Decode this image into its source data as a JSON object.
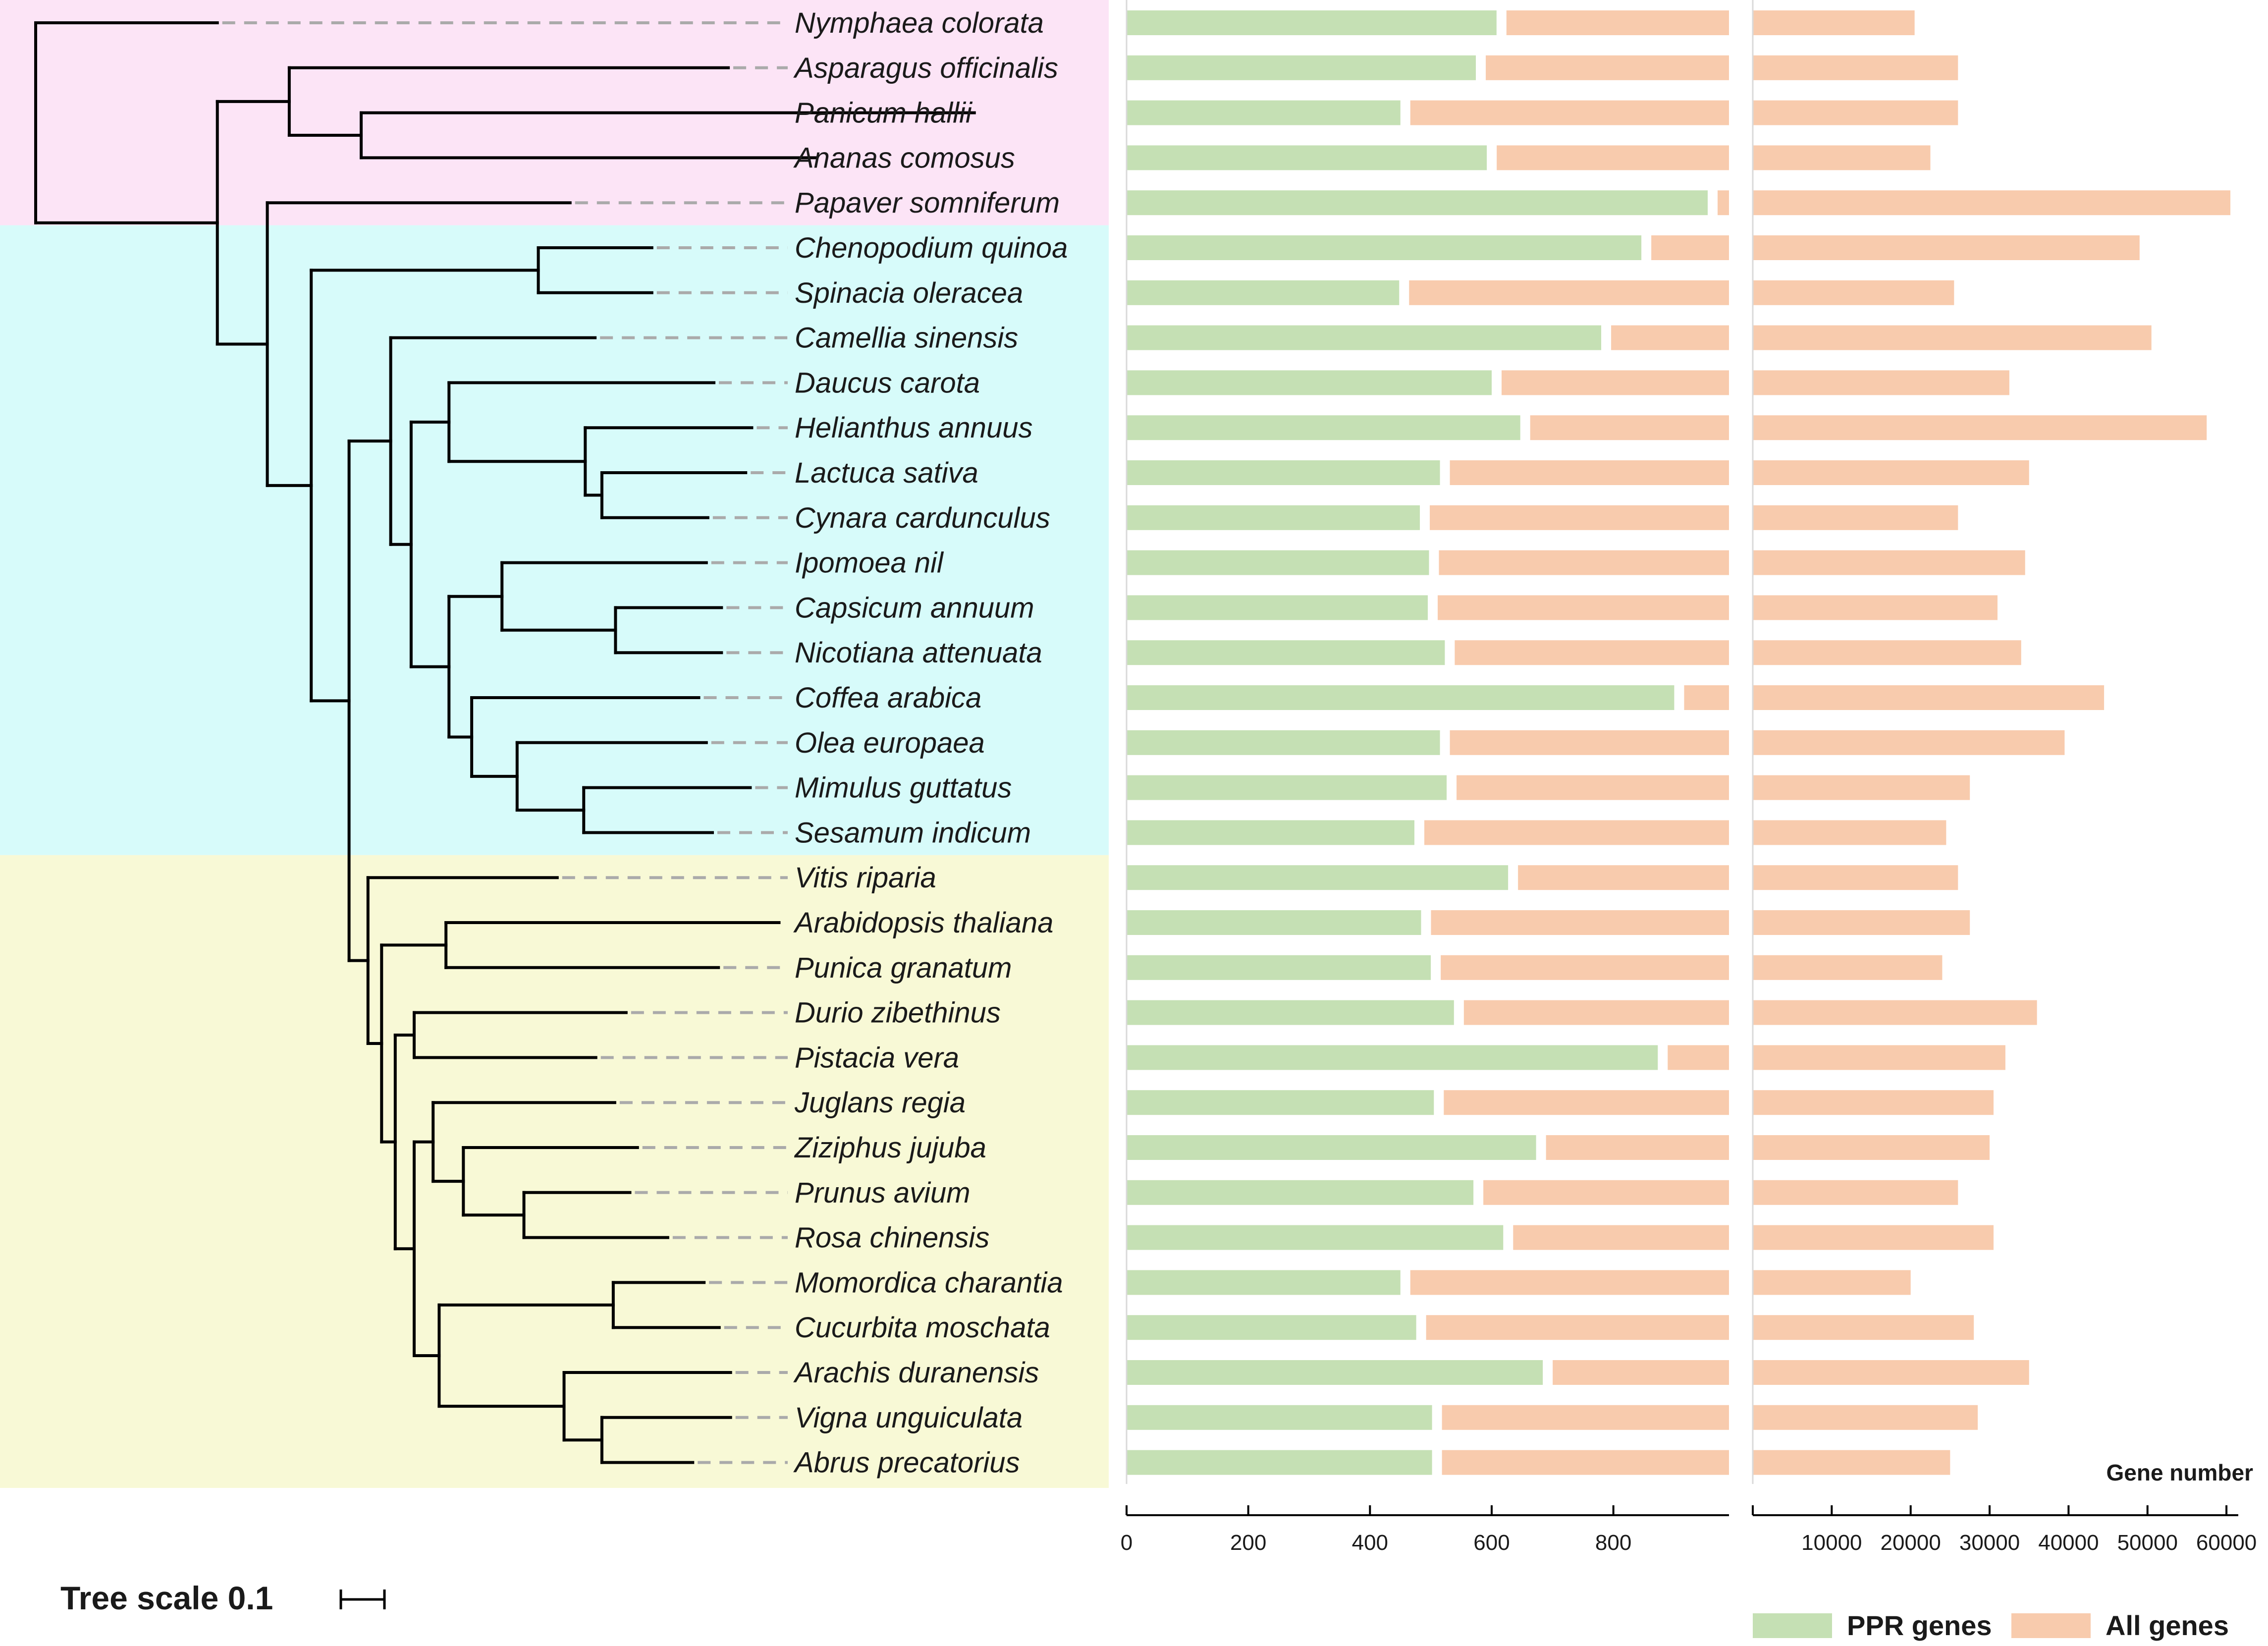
{
  "chart_data": {
    "type": "bar",
    "title": "",
    "clades": [
      {
        "name": "clade-1",
        "color": "#fce4f6",
        "from": 0,
        "to": 4
      },
      {
        "name": "clade-2",
        "color": "#d7fbfa",
        "from": 5,
        "to": 18
      },
      {
        "name": "clade-3",
        "color": "#f8f9d6",
        "from": 19,
        "to": 32
      }
    ],
    "categories": [
      "Nymphaea colorata",
      "Asparagus officinalis",
      "Panicum hallii",
      "Ananas comosus",
      "Papaver somniferum",
      "Chenopodium quinoa",
      "Spinacia oleracea",
      "Camellia sinensis",
      "Daucus carota",
      "Helianthus annuus",
      "Lactuca sativa",
      "Cynara cardunculus",
      "Ipomoea nil",
      "Capsicum annuum",
      "Nicotiana attenuata",
      "Coffea arabica",
      "Olea europaea",
      "Mimulus guttatus",
      "Sesamum indicum",
      "Vitis riparia",
      "Arabidopsis thaliana",
      "Punica granatum",
      "Durio zibethinus",
      "Pistacia vera",
      "Juglans regia",
      "Ziziphus jujuba",
      "Prunus avium",
      "Rosa chinensis",
      "Momordica charantia",
      "Cucurbita moschata",
      "Arachis duranensis",
      "Vigna unguiculata",
      "Abrus precatorius"
    ],
    "series": [
      {
        "name": "PPR genes",
        "color": "#c5e0b4",
        "values": [
          608,
          574,
          450,
          592,
          955,
          846,
          448,
          780,
          600,
          647,
          515,
          482,
          497,
          495,
          523,
          900,
          515,
          526,
          473,
          627,
          484,
          500,
          538,
          873,
          505,
          673,
          570,
          619,
          450,
          476,
          684,
          502,
          502
        ]
      },
      {
        "name": "All genes",
        "color": "#f8cbad",
        "values": [
          20500,
          26000,
          26000,
          22500,
          60500,
          49000,
          25500,
          50500,
          32500,
          57500,
          35000,
          26000,
          34500,
          31000,
          34000,
          44500,
          39500,
          27500,
          24500,
          26000,
          27500,
          24000,
          36000,
          32000,
          30500,
          30000,
          26000,
          30500,
          20000,
          28000,
          35000,
          28500,
          25000
        ]
      }
    ],
    "axes": [
      {
        "series": "PPR genes",
        "xlim": [
          0,
          990
        ],
        "ticks": [
          0,
          200,
          400,
          600,
          800
        ]
      },
      {
        "series": "All genes",
        "xlim": [
          0,
          61500
        ],
        "ticks": [
          10000,
          20000,
          30000,
          40000,
          50000,
          60000
        ]
      }
    ],
    "xlabel": "Gene number",
    "legend": {
      "position": "bottom-right",
      "entries": [
        "PPR genes",
        "All genes"
      ]
    },
    "tree_scale_label": "Tree scale 0.1",
    "tree": {
      "root_x": 0.0,
      "root_max_x": 1.0,
      "n": {
        "x": 0.0,
        "c": [
          {
            "x": 0.24,
            "leaf": 0
          },
          {
            "x": 0.24,
            "c": [
              {
                "x": 0.095,
                "c": [
                  {
                    "x": 0.58,
                    "leaf": 1
                  },
                  {
                    "x": 0.095,
                    "c": [
                      {
                        "x": 0.81,
                        "leaf": 2
                      },
                      {
                        "x": 0.6,
                        "leaf": 3
                      }
                    ]
                  }
                ]
              },
              {
                "x": 0.066,
                "c": [
                  {
                    "x": 0.4,
                    "leaf": 4
                  },
                  {
                    "x": 0.058,
                    "c": [
                      {
                        "x": 0.3,
                        "c": [
                          {
                            "x": 0.15,
                            "leaf": 5
                          },
                          {
                            "x": 0.15,
                            "leaf": 6
                          }
                        ]
                      },
                      {
                        "x": 0.05,
                        "c": [
                          {
                            "x": 0.055,
                            "c": [
                              {
                                "x": 0.27,
                                "leaf": 7
                              },
                              {
                                "x": 0.027,
                                "c": [
                                  {
                                    "x": 0.05,
                                    "c": [
                                      {
                                        "x": 0.35,
                                        "leaf": 8
                                      },
                                      {
                                        "x": 0.18,
                                        "c": [
                                          {
                                            "x": 0.22,
                                            "leaf": 9
                                          },
                                          {
                                            "x": 0.022,
                                            "c": [
                                              {
                                                "x": 0.19,
                                                "leaf": 10
                                              },
                                              {
                                                "x": 0.14,
                                                "leaf": 11
                                              }
                                            ]
                                          }
                                        ]
                                      }
                                    ]
                                  },
                                  {
                                    "x": 0.05,
                                    "c": [
                                      {
                                        "x": 0.07,
                                        "c": [
                                          {
                                            "x": 0.27,
                                            "leaf": 12
                                          },
                                          {
                                            "x": 0.15,
                                            "c": [
                                              {
                                                "x": 0.14,
                                                "leaf": 13
                                              },
                                              {
                                                "x": 0.14,
                                                "leaf": 14
                                              }
                                            ]
                                          }
                                        ]
                                      },
                                      {
                                        "x": 0.03,
                                        "c": [
                                          {
                                            "x": 0.3,
                                            "leaf": 15
                                          },
                                          {
                                            "x": 0.06,
                                            "c": [
                                              {
                                                "x": 0.25,
                                                "leaf": 16
                                              },
                                              {
                                                "x": 0.088,
                                                "c": [
                                                  {
                                                    "x": 0.22,
                                                    "leaf": 17
                                                  },
                                                  {
                                                    "x": 0.17,
                                                    "leaf": 18
                                                  }
                                                ]
                                              }
                                            ]
                                          }
                                        ]
                                      }
                                    ]
                                  }
                                ]
                              }
                            ]
                          },
                          {
                            "x": 0.025,
                            "c": [
                              {
                                "x": 0.25,
                                "leaf": 19
                              },
                              {
                                "x": 0.018,
                                "c": [
                                  {
                                    "x": 0.085,
                                    "c": [
                                      {
                                        "x": 0.44,
                                        "leaf": 20
                                      },
                                      {
                                        "x": 0.36,
                                        "leaf": 21
                                      }
                                    ]
                                  },
                                  {
                                    "x": 0.018,
                                    "c": [
                                      {
                                        "x": 0.025,
                                        "c": [
                                          {
                                            "x": 0.28,
                                            "leaf": 22
                                          },
                                          {
                                            "x": 0.24,
                                            "leaf": 23
                                          }
                                        ]
                                      },
                                      {
                                        "x": 0.025,
                                        "c": [
                                          {
                                            "x": 0.025,
                                            "c": [
                                              {
                                                "x": 0.24,
                                                "leaf": 24
                                              },
                                              {
                                                "x": 0.04,
                                                "c": [
                                                  {
                                                    "x": 0.23,
                                                    "leaf": 25
                                                  },
                                                  {
                                                    "x": 0.08,
                                                    "c": [
                                                      {
                                                        "x": 0.14,
                                                        "leaf": 26
                                                      },
                                                      {
                                                        "x": 0.19,
                                                        "leaf": 27
                                                      }
                                                    ]
                                                  }
                                                ]
                                              }
                                            ]
                                          },
                                          {
                                            "x": 0.033,
                                            "c": [
                                              {
                                                "x": 0.23,
                                                "c": [
                                                  {
                                                    "x": 0.12,
                                                    "leaf": 28
                                                  },
                                                  {
                                                    "x": 0.14,
                                                    "leaf": 29
                                                  }
                                                ]
                                              },
                                              {
                                                "x": 0.165,
                                                "c": [
                                                  {
                                                    "x": 0.22,
                                                    "leaf": 30
                                                  },
                                                  {
                                                    "x": 0.05,
                                                    "c": [
                                                      {
                                                        "x": 0.17,
                                                        "leaf": 31
                                                      },
                                                      {
                                                        "x": 0.12,
                                                        "leaf": 32
                                                      }
                                                    ]
                                                  }
                                                ]
                                              }
                                            ]
                                          }
                                        ]
                                      }
                                    ]
                                  }
                                ]
                              }
                            ]
                          }
                        ]
                      }
                    ]
                  }
                ]
              }
            ]
          }
        ]
      }
    }
  }
}
